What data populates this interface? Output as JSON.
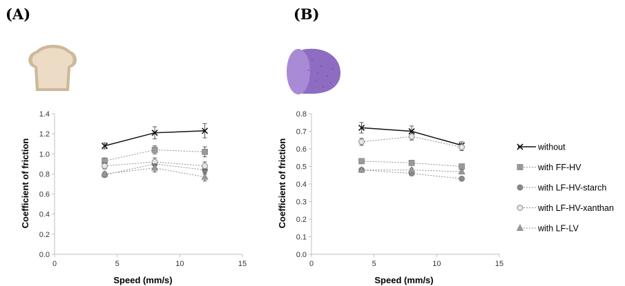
{
  "chart_data": [
    {
      "type": "line",
      "panel_label": "(A)",
      "xlabel": "Speed (mm/s)",
      "ylabel": "Coefficient of friction",
      "xlim": [
        0,
        15
      ],
      "ylim": [
        0,
        1.4
      ],
      "xticks": [
        "0",
        "5",
        "10",
        "15"
      ],
      "yticks": [
        "0.0",
        "0.2",
        "0.4",
        "0.6",
        "0.8",
        "1.0",
        "1.2",
        "1.4"
      ],
      "x": [
        4,
        8,
        12
      ],
      "series": [
        {
          "name": "without",
          "values": [
            1.08,
            1.21,
            1.23
          ],
          "errors": [
            0.03,
            0.06,
            0.07
          ]
        },
        {
          "name": "with FF-HV",
          "values": [
            0.93,
            1.04,
            1.02
          ],
          "errors": [
            0.03,
            0.04,
            0.05
          ]
        },
        {
          "name": "with LF-HV-starch",
          "values": [
            0.79,
            0.9,
            0.84
          ],
          "errors": [
            0.02,
            0.04,
            0.04
          ]
        },
        {
          "name": "with LF-HV-xanthan",
          "values": [
            0.88,
            0.92,
            0.88
          ],
          "errors": [
            0.03,
            0.04,
            0.04
          ]
        },
        {
          "name": "with LF-LV",
          "values": [
            0.8,
            0.86,
            0.77
          ],
          "errors": [
            0.02,
            0.04,
            0.04
          ]
        }
      ],
      "icon": "bread-slice-icon"
    },
    {
      "type": "line",
      "panel_label": "(B)",
      "xlabel": "Speed (mm/s)",
      "ylabel": "Coefficient of friction",
      "xlim": [
        0,
        15
      ],
      "ylim": [
        0,
        0.8
      ],
      "xticks": [
        "0",
        "5",
        "10",
        "15"
      ],
      "yticks": [
        "0.0",
        "0.1",
        "0.2",
        "0.3",
        "0.4",
        "0.5",
        "0.6",
        "0.7",
        "0.8"
      ],
      "x": [
        4,
        8,
        12
      ],
      "series": [
        {
          "name": "without",
          "values": [
            0.72,
            0.7,
            0.62
          ],
          "errors": [
            0.03,
            0.03,
            0.02
          ]
        },
        {
          "name": "with FF-HV",
          "values": [
            0.53,
            0.52,
            0.5
          ],
          "errors": [
            0.01,
            0.01,
            0.01
          ]
        },
        {
          "name": "with LF-HV-starch",
          "values": [
            0.48,
            0.46,
            0.43
          ],
          "errors": [
            0.01,
            0.01,
            0.01
          ]
        },
        {
          "name": "with LF-HV-xanthan",
          "values": [
            0.64,
            0.67,
            0.61
          ],
          "errors": [
            0.02,
            0.02,
            0.02
          ]
        },
        {
          "name": "with LF-LV",
          "values": [
            0.48,
            0.48,
            0.47
          ],
          "errors": [
            0.01,
            0.01,
            0.01
          ]
        }
      ],
      "icon": "eggplant-half-icon"
    }
  ],
  "legend": {
    "placement": "right",
    "entries": [
      {
        "name": "without",
        "marker": "x",
        "line": "solid",
        "color": "#111111"
      },
      {
        "name": "with FF-HV",
        "marker": "square",
        "line": "dotted",
        "color": "#9a9a9a"
      },
      {
        "name": "with LF-HV-starch",
        "marker": "circle",
        "line": "dotted",
        "color": "#8a8a8a"
      },
      {
        "name": "with LF-HV-xanthan",
        "marker": "circle-open",
        "line": "dotted",
        "color": "#b8b8b8"
      },
      {
        "name": "with LF-LV",
        "marker": "triangle",
        "line": "dotted",
        "color": "#9a9a9a"
      }
    ]
  },
  "colors": {
    "axis": "#bfbfbf",
    "bread_crust": "#cdb89a",
    "bread_crumb": "#ecdcc5",
    "eggplant_skin": "#8e6cc1",
    "eggplant_flesh": "#a98ad6"
  }
}
